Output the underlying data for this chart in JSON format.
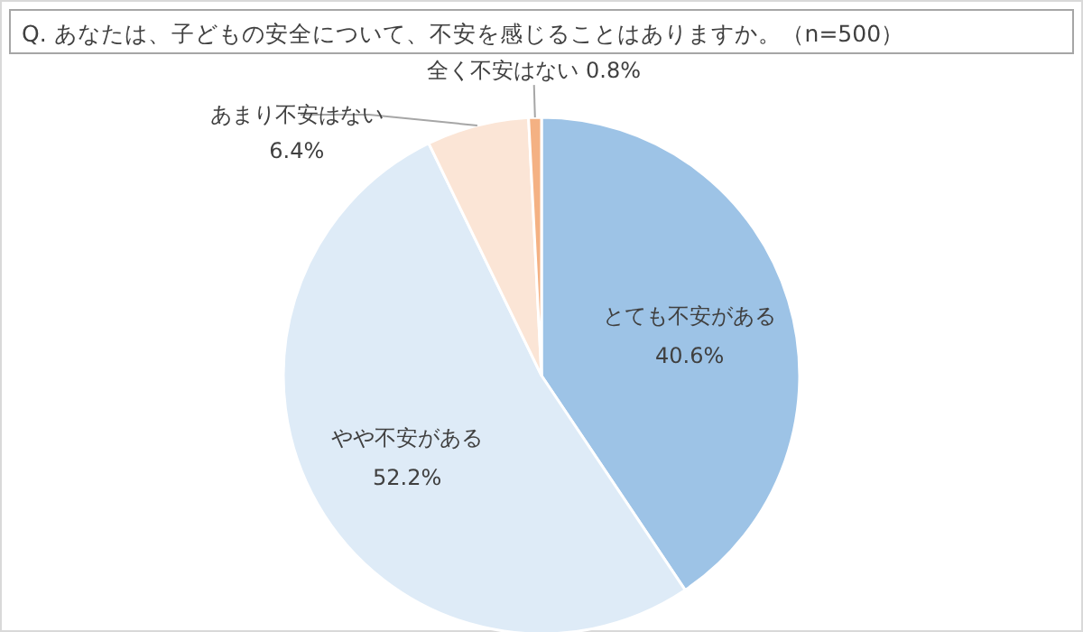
{
  "chart_data": {
    "type": "pie",
    "title": "Q. あなたは、子どもの安全について、不安を感じることはありますか。（n=500）",
    "categories": [
      "とても不安がある",
      "やや不安がある",
      "あまり不安はない",
      "全く不安はない"
    ],
    "values": [
      40.6,
      52.2,
      6.4,
      0.8
    ],
    "value_labels": [
      "40.6%",
      "52.2%",
      "6.4%",
      "0.8%"
    ],
    "colors": [
      "#9dc3e6",
      "#deebf7",
      "#fbe5d6",
      "#f4b183"
    ]
  }
}
